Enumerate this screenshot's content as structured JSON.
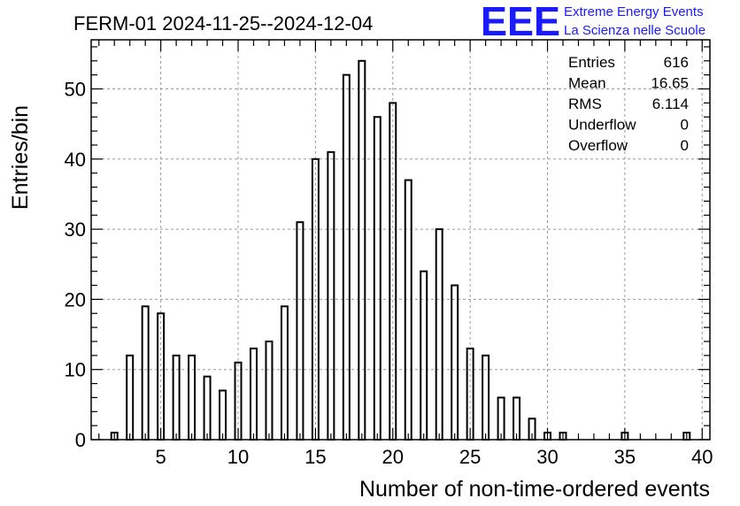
{
  "logo": {
    "mark": "EEE",
    "line1": "Extreme Energy Events",
    "line2": "La Scienza nelle Scuole"
  },
  "stats": [
    {
      "label": "Entries",
      "value": "616"
    },
    {
      "label": "Mean",
      "value": "16.65"
    },
    {
      "label": "RMS",
      "value": "6.114"
    },
    {
      "label": "Underflow",
      "value": "0"
    },
    {
      "label": "Overflow",
      "value": "0"
    }
  ],
  "chart_data": {
    "type": "bar",
    "title": "FERM-01 2024-11-25--2024-12-04",
    "xlabel": "Number of non-time-ordered events",
    "ylabel": "Entries/bin",
    "xlim": [
      0.5,
      40.5
    ],
    "ylim": [
      0,
      57
    ],
    "xticks": [
      5,
      10,
      15,
      20,
      25,
      30,
      35,
      40
    ],
    "yticks": [
      0,
      10,
      20,
      30,
      40,
      50
    ],
    "grid": true,
    "legend": "stats box top-right",
    "bar_width": 0.4,
    "categories": [
      2,
      3,
      4,
      5,
      6,
      7,
      8,
      9,
      10,
      11,
      12,
      13,
      14,
      15,
      16,
      17,
      18,
      19,
      20,
      21,
      22,
      23,
      24,
      25,
      26,
      27,
      28,
      29,
      30,
      31,
      35,
      39
    ],
    "values": [
      1,
      12,
      19,
      18,
      12,
      12,
      9,
      7,
      11,
      13,
      14,
      19,
      31,
      40,
      41,
      52,
      54,
      46,
      48,
      37,
      24,
      30,
      22,
      13,
      12,
      6,
      6,
      3,
      1,
      1,
      1,
      1
    ]
  }
}
